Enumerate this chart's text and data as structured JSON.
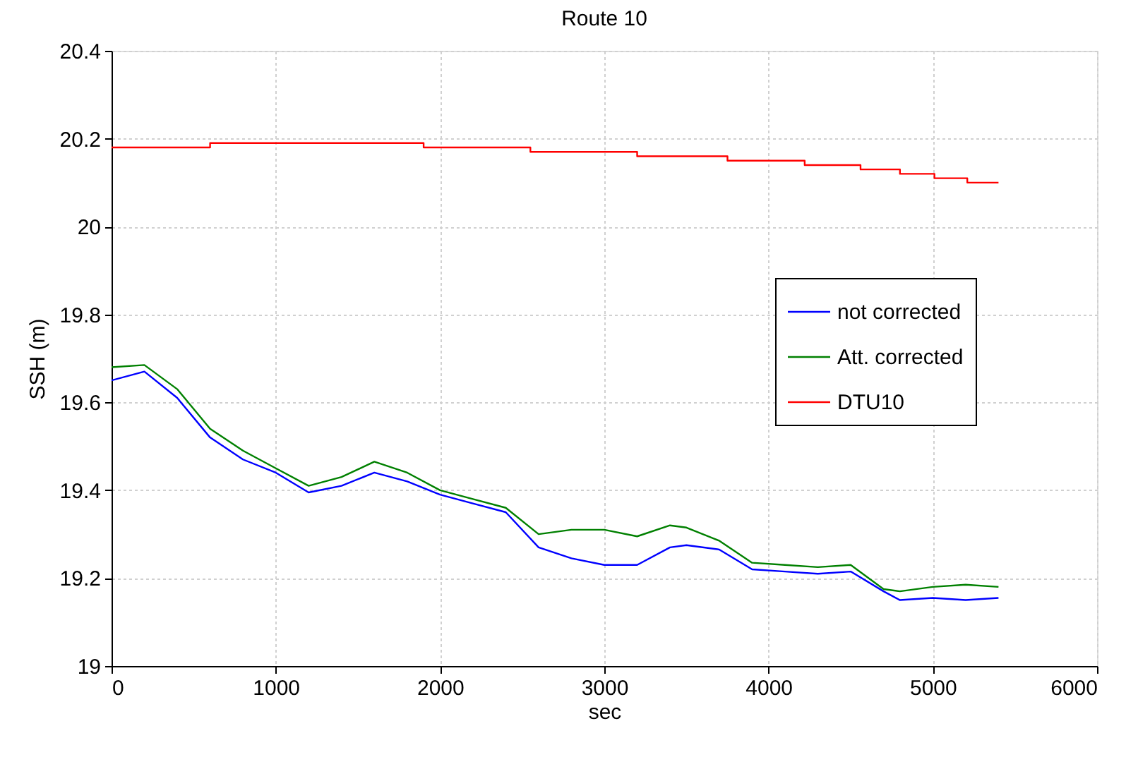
{
  "chart_data": {
    "type": "line",
    "title": "Route 10",
    "xlabel": "sec",
    "ylabel": "SSH (m)",
    "xlim": [
      0,
      6000
    ],
    "xticks": [
      0,
      1000,
      2000,
      3000,
      4000,
      5000,
      6000
    ],
    "ylim": [
      19,
      20.4
    ],
    "yticks": [
      19,
      19.2,
      19.4,
      19.6,
      19.8,
      20,
      20.2,
      20.4
    ],
    "grid": true,
    "legend": "right",
    "line_style": "solid",
    "marker": "none",
    "series": [
      {
        "name": "not corrected",
        "color": "#0000ff",
        "x": [
          0,
          200,
          400,
          600,
          800,
          1000,
          1200,
          1400,
          1600,
          1800,
          2000,
          2200,
          2400,
          2600,
          2800,
          3000,
          3200,
          3400,
          3500,
          3700,
          3900,
          4100,
          4300,
          4500,
          4700,
          4800,
          5000,
          5200,
          5400
        ],
        "values": [
          19.65,
          19.67,
          19.61,
          19.52,
          19.47,
          19.44,
          19.395,
          19.41,
          19.44,
          19.42,
          19.39,
          19.37,
          19.35,
          19.27,
          19.245,
          19.23,
          19.23,
          19.27,
          19.275,
          19.265,
          19.22,
          19.215,
          19.21,
          19.215,
          19.17,
          19.15,
          19.155,
          19.15,
          19.155
        ]
      },
      {
        "name": "Att. corrected",
        "color": "#008000",
        "x": [
          0,
          200,
          400,
          600,
          800,
          1000,
          1200,
          1400,
          1600,
          1800,
          2000,
          2200,
          2400,
          2600,
          2800,
          3000,
          3200,
          3400,
          3500,
          3700,
          3900,
          4100,
          4300,
          4500,
          4700,
          4800,
          5000,
          5200,
          5400
        ],
        "values": [
          19.68,
          19.685,
          19.63,
          19.54,
          19.49,
          19.45,
          19.41,
          19.43,
          19.465,
          19.44,
          19.4,
          19.38,
          19.36,
          19.3,
          19.31,
          19.31,
          19.295,
          19.32,
          19.315,
          19.285,
          19.235,
          19.23,
          19.225,
          19.23,
          19.175,
          19.17,
          19.18,
          19.185,
          19.18
        ]
      },
      {
        "name": "DTU10",
        "color": "#ff0000",
        "type": "step",
        "x": [
          0,
          600,
          1900,
          2550,
          3200,
          3750,
          4220,
          4560,
          4800,
          5010,
          5210,
          5400
        ],
        "values": [
          20.18,
          20.19,
          20.18,
          20.17,
          20.16,
          20.15,
          20.14,
          20.13,
          20.12,
          20.11,
          20.1,
          20.1
        ]
      }
    ]
  }
}
